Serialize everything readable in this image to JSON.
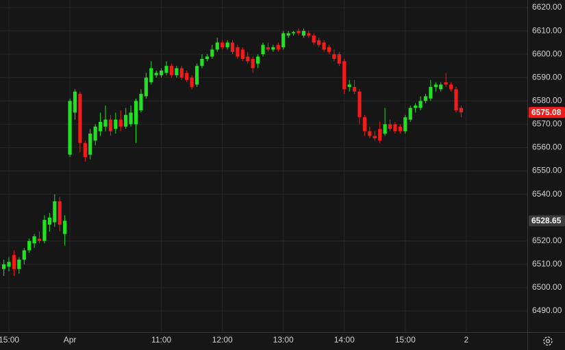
{
  "chart_data": {
    "type": "candlestick",
    "categories": [
      null,
      "15:00",
      null,
      null,
      null,
      null,
      null,
      null,
      null,
      null,
      null,
      null,
      null,
      "Apr",
      null,
      null,
      null,
      null,
      null,
      null,
      null,
      null,
      null,
      null,
      null,
      null,
      null,
      null,
      null,
      null,
      null,
      "11:00",
      null,
      null,
      null,
      null,
      null,
      null,
      null,
      null,
      null,
      null,
      null,
      "12:00",
      null,
      null,
      null,
      null,
      null,
      null,
      null,
      null,
      null,
      null,
      null,
      "13:00",
      null,
      null,
      null,
      null,
      null,
      null,
      null,
      null,
      null,
      null,
      null,
      "14:00",
      null,
      null,
      null,
      null,
      null,
      null,
      null,
      null,
      null,
      null,
      null,
      "15:00",
      null,
      null,
      null,
      null,
      null,
      null,
      null,
      null,
      null,
      null,
      null,
      "2"
    ],
    "open": [
      6508,
      6509,
      6514,
      6508,
      6512,
      6516,
      6519,
      6521,
      6520,
      6527,
      6528,
      6537,
      6523,
      6557,
      6575,
      6583,
      6562,
      6557,
      6563,
      6567,
      6569,
      6572,
      6568,
      6572,
      6569,
      6570,
      6570,
      6576,
      6582,
      6588,
      6591,
      6591,
      6592,
      6595,
      6591,
      6594,
      6592,
      6590,
      6587,
      6595,
      6598,
      6599,
      6602,
      6605,
      6603,
      6605,
      6603,
      6602,
      6599,
      6598,
      6596,
      6600,
      6603,
      6602,
      6604,
      6603,
      6608,
      6609,
      6610,
      6608,
      6609,
      6608,
      6606,
      6605,
      6603,
      6600,
      6600,
      6597,
      6586,
      6586,
      6584,
      6573,
      6567,
      6565,
      6568,
      6566,
      6570,
      6570,
      6569,
      6567,
      6572,
      6577,
      6577,
      6580,
      6581,
      6586,
      6585,
      6588,
      6587,
      6585,
      6577,
      null
    ],
    "high": [
      6512,
      6513,
      6516,
      6513,
      6517,
      6521,
      6523,
      6524,
      6531,
      6532,
      6540,
      6539,
      6531,
      6581,
      6585,
      6584,
      6563,
      6568,
      6570,
      6575,
      6578,
      6574,
      6575,
      6576,
      6577,
      6578,
      6581,
      6585,
      6592,
      6597,
      6593,
      6594,
      6597,
      6596,
      6595,
      6595,
      6593,
      6591,
      6596,
      6600,
      6600,
      6604,
      6607,
      6606,
      6606,
      6606,
      6604,
      6603,
      6601,
      6599,
      6600,
      6605,
      6605,
      6604,
      6605,
      6610,
      6610,
      6610,
      6611,
      6611,
      6610,
      6609,
      6607,
      6606,
      6604,
      6602,
      6601,
      6598,
      6589,
      6589,
      6585,
      6574,
      6569,
      6567,
      6571,
      6577,
      6572,
      6571,
      6570,
      6574,
      6578,
      6579,
      6582,
      6583,
      6589,
      6588,
      6588,
      6592,
      6588,
      6586,
      6578,
      null
    ],
    "low": [
      6505,
      6507,
      6505,
      6506,
      6510,
      6515,
      6517,
      6519,
      6519,
      6524,
      6526,
      6524,
      6518,
      6556,
      6572,
      6558,
      6554,
      6555,
      6561,
      6565,
      6567,
      6565,
      6566,
      6567,
      6568,
      6569,
      6562,
      6575,
      6581,
      6587,
      6590,
      6590,
      6591,
      6590,
      6590,
      6589,
      6588,
      6585,
      6586,
      6594,
      6597,
      6598,
      6601,
      6602,
      6602,
      6600,
      6598,
      6597,
      6596,
      6592,
      6594,
      6599,
      6601,
      6601,
      6601,
      6602,
      6607,
      6608,
      6608,
      6607,
      6607,
      6604,
      6603,
      6601,
      6600,
      6597,
      6595,
      6583,
      6584,
      6583,
      6570,
      6565,
      6564,
      6563,
      6562,
      6565,
      6567,
      6566,
      6566,
      6566,
      6571,
      6575,
      6576,
      6579,
      6580,
      6584,
      6584,
      6586,
      6584,
      6575,
      6573,
      null
    ],
    "close": [
      6510,
      6511,
      6508,
      6512,
      6516,
      6520,
      6522,
      6520,
      6529,
      6530,
      6537,
      6527,
      6528.65,
      6580,
      6584,
      6562,
      6556,
      6566,
      6569,
      6571,
      6572,
      6567,
      6572,
      6569,
      6574,
      6575,
      6580,
      6583,
      6590,
      6594,
      6592,
      6593,
      6595,
      6591,
      6594,
      6590,
      6589,
      6586,
      6595,
      6598,
      6599,
      6602,
      6605,
      6603,
      6605,
      6601,
      6599,
      6598,
      6597,
      6594,
      6599,
      6604,
      6602,
      6603,
      6602,
      6609,
      6609,
      6609.5,
      6609,
      6610,
      6608,
      6605,
      6604,
      6602,
      6601,
      6598,
      6596,
      6585,
      6587,
      6584,
      6573,
      6567,
      6565,
      6564,
      6563,
      6570,
      6568,
      6567,
      6567,
      6573,
      6577,
      6578,
      6580,
      6582,
      6586,
      6587,
      6587,
      6587,
      6585,
      6576,
      6575.08,
      null
    ],
    "up_color": "#22e022",
    "down_color": "#f01c1c",
    "ylim": [
      6480.92,
      6623.23
    ],
    "yticks": [
      {
        "value": 6490,
        "label": "6490.00"
      },
      {
        "value": 6500,
        "label": "6500.00"
      },
      {
        "value": 6510,
        "label": "6510.00"
      },
      {
        "value": 6520,
        "label": "6520.00"
      },
      {
        "value": 6540,
        "label": "6540.00"
      },
      {
        "value": 6550,
        "label": "6550.00"
      },
      {
        "value": 6560,
        "label": "6560.00"
      },
      {
        "value": 6570,
        "label": "6570.00"
      },
      {
        "value": 6580,
        "label": "6580.00"
      },
      {
        "value": 6590,
        "label": "6590.00"
      },
      {
        "value": 6600,
        "label": "6600.00"
      },
      {
        "value": 6610,
        "label": "6610.00"
      },
      {
        "value": 6620,
        "label": "6620.00"
      }
    ],
    "grid": true,
    "price_labels": [
      6575.08,
      6528.65
    ],
    "price_label_colors": [
      "#f01c1c",
      "#3c3c3c"
    ]
  }
}
